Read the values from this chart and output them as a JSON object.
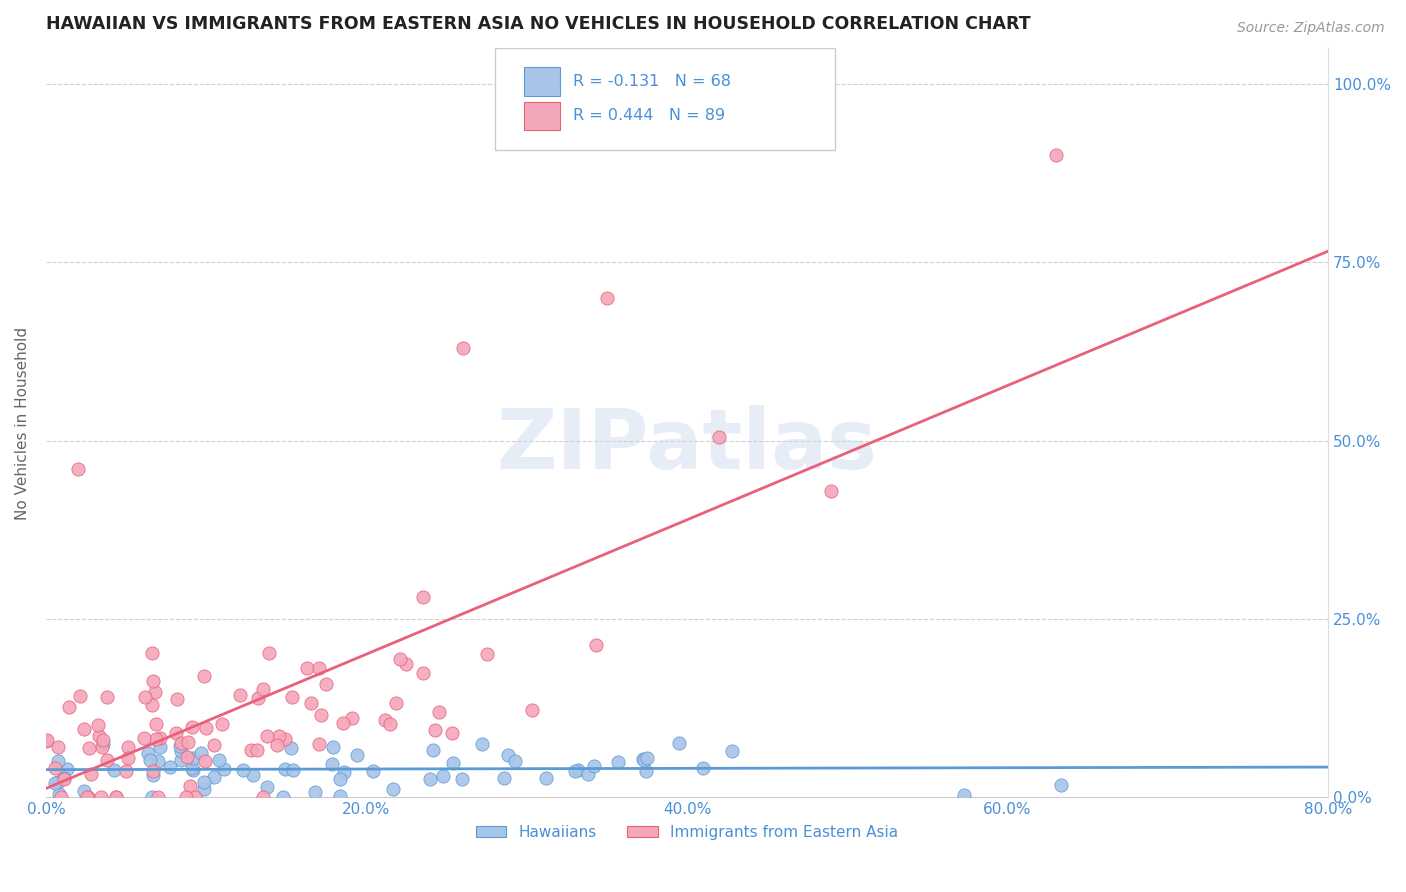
{
  "title": "HAWAIIAN VS IMMIGRANTS FROM EASTERN ASIA NO VEHICLES IN HOUSEHOLD CORRELATION CHART",
  "source": "Source: ZipAtlas.com",
  "ylabel": "No Vehicles in Household",
  "xmin": 0.0,
  "xmax": 0.8,
  "ymin": 0.0,
  "ymax": 1.05,
  "legend_label1": "Hawaiians",
  "legend_label2": "Immigrants from Eastern Asia",
  "r1": -0.131,
  "n1": 68,
  "r2": 0.444,
  "n2": 89,
  "color_hawaiians": "#a8c4e8",
  "color_immigrants": "#f4a7b9",
  "color_line1": "#5b9bd5",
  "color_line2": "#e8607a",
  "color_yticks": "#4a90d9",
  "watermark": "ZIPatlas",
  "bg_color": "#ffffff",
  "grid_color": "#d0d0d0",
  "title_color": "#222222",
  "source_color": "#999999",
  "ylabel_color": "#666666"
}
